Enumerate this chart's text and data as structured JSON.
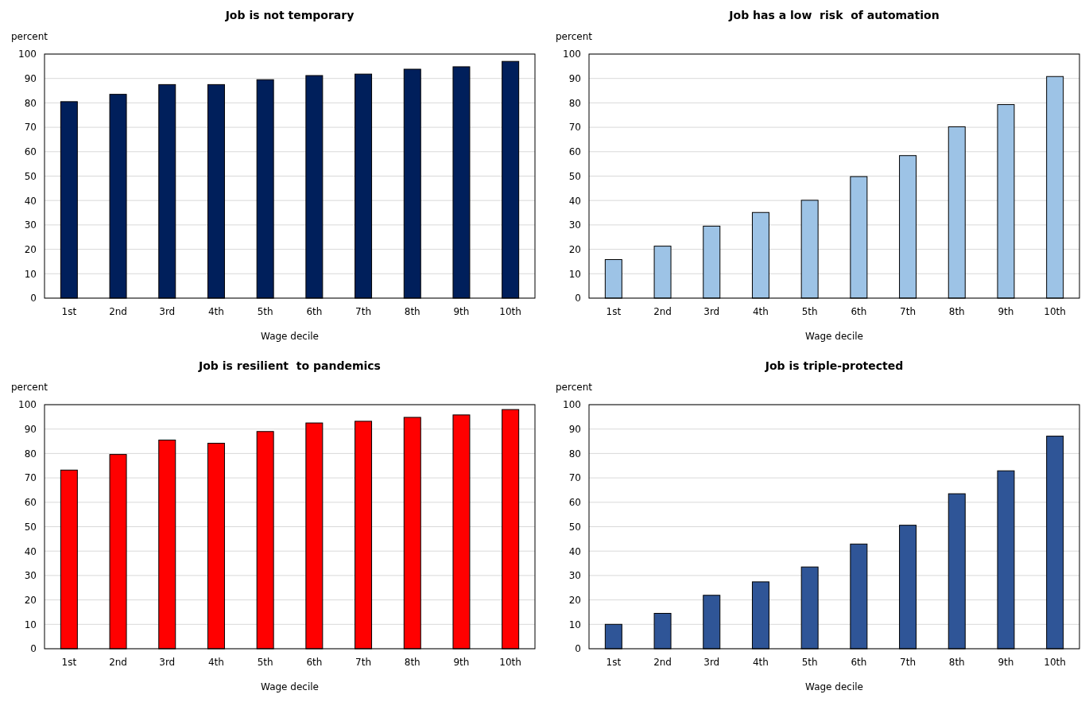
{
  "chart_data": [
    {
      "type": "bar",
      "title": "Job is not temporary",
      "ylabel": "percent",
      "xlabel": "Wage decile",
      "categories": [
        "1st",
        "2nd",
        "3rd",
        "4th",
        "5th",
        "6th",
        "7th",
        "8th",
        "9th",
        "10th"
      ],
      "values": [
        80.5,
        83.5,
        87.5,
        87.5,
        89.5,
        91.2,
        91.8,
        93.8,
        94.8,
        97
      ],
      "color": "#001f5b",
      "ylim": [
        0,
        100
      ],
      "yticks": [
        0,
        10,
        20,
        30,
        40,
        50,
        60,
        70,
        80,
        90,
        100
      ],
      "grid": "y"
    },
    {
      "type": "bar",
      "title": "Job has a low  risk  of automation",
      "ylabel": "percent",
      "xlabel": "Wage decile",
      "categories": [
        "1st",
        "2nd",
        "3rd",
        "4th",
        "5th",
        "6th",
        "7th",
        "8th",
        "9th",
        "10th"
      ],
      "values": [
        15.8,
        21.3,
        29.5,
        35.1,
        40.1,
        49.8,
        58.4,
        70.2,
        79.3,
        90.8
      ],
      "color": "#9dc3e6",
      "ylim": [
        0,
        100
      ],
      "yticks": [
        0,
        10,
        20,
        30,
        40,
        50,
        60,
        70,
        80,
        90,
        100
      ],
      "grid": "y"
    },
    {
      "type": "bar",
      "title": "Job is resilient  to pandemics",
      "ylabel": "percent",
      "xlabel": "Wage decile",
      "categories": [
        "1st",
        "2nd",
        "3rd",
        "4th",
        "5th",
        "6th",
        "7th",
        "8th",
        "9th",
        "10th"
      ],
      "values": [
        73.2,
        79.6,
        85.5,
        84.2,
        89,
        92.5,
        93.2,
        94.8,
        95.8,
        98
      ],
      "color": "#ff0000",
      "ylim": [
        0,
        100
      ],
      "yticks": [
        0,
        10,
        20,
        30,
        40,
        50,
        60,
        70,
        80,
        90,
        100
      ],
      "grid": "y"
    },
    {
      "type": "bar",
      "title": "Job is triple-protected",
      "ylabel": "percent",
      "xlabel": "Wage decile",
      "categories": [
        "1st",
        "2nd",
        "3rd",
        "4th",
        "5th",
        "6th",
        "7th",
        "8th",
        "9th",
        "10th"
      ],
      "values": [
        10,
        14.5,
        21.9,
        27.4,
        33.5,
        42.9,
        50.6,
        63.5,
        72.9,
        87.1
      ],
      "color": "#2f5597",
      "ylim": [
        0,
        100
      ],
      "yticks": [
        0,
        10,
        20,
        30,
        40,
        50,
        60,
        70,
        80,
        90,
        100
      ],
      "grid": "y"
    }
  ]
}
